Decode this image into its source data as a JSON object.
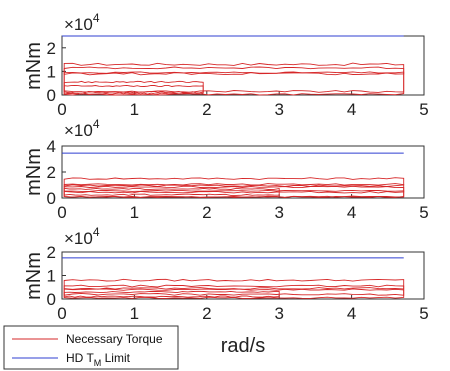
{
  "chart_data": [
    {
      "type": "line",
      "multiplier_label": "×10",
      "multiplier_exp": "4",
      "ylabel": "mNm",
      "xlim": [
        0,
        5
      ],
      "ylim": [
        0,
        25000
      ],
      "x_ticks": [
        "0",
        "1",
        "2",
        "3",
        "4",
        "5"
      ],
      "y_ticks": [
        "0",
        "1",
        "2"
      ],
      "limit_value": 25000,
      "loops": [
        {
          "lo": 9000,
          "hi": 13000,
          "xmax": 4.72,
          "amp": 500
        },
        {
          "lo": 1500,
          "hi": 11500,
          "xmax": 4.72,
          "amp": 400
        },
        {
          "lo": 300,
          "hi": 9500,
          "xmax": 4.72,
          "amp": 300
        },
        {
          "lo": 600,
          "hi": 3800,
          "xmax": 1.95,
          "amp": 300
        },
        {
          "lo": 1200,
          "hi": 5500,
          "xmax": 1.95,
          "amp": 300
        }
      ]
    },
    {
      "type": "line",
      "multiplier_label": "×10",
      "multiplier_exp": "4",
      "ylabel": "mNm",
      "xlim": [
        0,
        5
      ],
      "ylim": [
        0,
        40000
      ],
      "x_ticks": [
        "0",
        "1",
        "2",
        "3",
        "4",
        "5"
      ],
      "y_ticks": [
        "0",
        "2",
        "4"
      ],
      "limit_value": 34500,
      "loops": [
        {
          "lo": 9500,
          "hi": 15000,
          "xmax": 4.72,
          "amp": 700
        },
        {
          "lo": 4500,
          "hi": 10500,
          "xmax": 4.72,
          "amp": 600
        },
        {
          "lo": 1000,
          "hi": 8500,
          "xmax": 4.72,
          "amp": 500
        },
        {
          "lo": 2500,
          "hi": 7000,
          "xmax": 3.0,
          "amp": 500
        },
        {
          "lo": 800,
          "hi": 5500,
          "xmax": 4.72,
          "amp": 400
        }
      ]
    },
    {
      "type": "line",
      "multiplier_label": "×10",
      "multiplier_exp": "4",
      "ylabel": "mNm",
      "xlabel": "rad/s",
      "xlim": [
        0,
        5
      ],
      "ylim": [
        0,
        20000
      ],
      "x_ticks": [
        "0",
        "1",
        "2",
        "3",
        "4",
        "5"
      ],
      "y_ticks": [
        "0",
        "1",
        "2"
      ],
      "limit_value": 17500,
      "loops": [
        {
          "lo": 4500,
          "hi": 8000,
          "xmax": 4.72,
          "amp": 400
        },
        {
          "lo": 2000,
          "hi": 5500,
          "xmax": 4.72,
          "amp": 400
        },
        {
          "lo": 500,
          "hi": 4000,
          "xmax": 4.72,
          "amp": 300
        },
        {
          "lo": 1000,
          "hi": 3000,
          "xmax": 3.0,
          "amp": 300
        }
      ]
    }
  ],
  "legend": {
    "items": [
      {
        "label": "Necessary Torque",
        "color": "#d62728"
      },
      {
        "label": "HD T",
        "sub": "M",
        "suffix": " Limit",
        "color": "#2f3fd0"
      }
    ]
  }
}
